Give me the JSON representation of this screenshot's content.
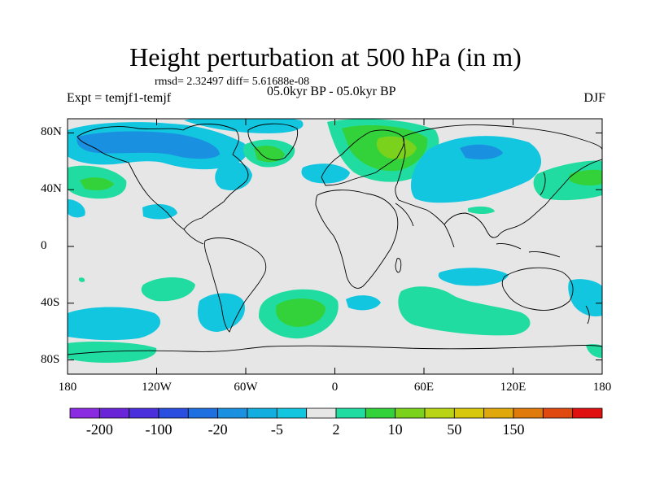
{
  "title": "Height perturbation at 500 hPa (in m)",
  "stats": "rmsd= 2.32497 diff= 5.61688e-08",
  "left_label": "Expt = temjf1-temjf",
  "center_label": "05.0kyr BP - 05.0kyr BP",
  "right_label": "DJF",
  "map": {
    "lon_range": [
      -180,
      180
    ],
    "lat_range": [
      -90,
      90
    ],
    "y_ticks": [
      {
        "lat": 80,
        "label": "80N"
      },
      {
        "lat": 40,
        "label": "40N"
      },
      {
        "lat": 0,
        "label": "0"
      },
      {
        "lat": -40,
        "label": "40S"
      },
      {
        "lat": -80,
        "label": "80S"
      }
    ],
    "x_ticks": [
      {
        "lon": -180,
        "label": "180"
      },
      {
        "lon": -120,
        "label": "120W"
      },
      {
        "lon": -60,
        "label": "60W"
      },
      {
        "lon": 0,
        "label": "0"
      },
      {
        "lon": 60,
        "label": "60E"
      },
      {
        "lon": 120,
        "label": "120E"
      },
      {
        "lon": 180,
        "label": "180"
      }
    ]
  },
  "colorbar": {
    "colors": [
      "#8a2be2",
      "#6a24d8",
      "#4a30dc",
      "#2a4ee0",
      "#1e6fe0",
      "#1a90e0",
      "#12aee0",
      "#12c6e0",
      "#e6e6e6",
      "#20dca0",
      "#34d23a",
      "#7ad21c",
      "#b8d414",
      "#d8c80c",
      "#e0a80a",
      "#e07a0a",
      "#e04a10",
      "#e01010"
    ],
    "labels": [
      "-200",
      "-100",
      "-20",
      "-5",
      "2",
      "10",
      "50",
      "150"
    ],
    "label_positions": [
      1,
      3,
      5,
      7,
      9,
      11,
      13,
      15
    ]
  }
}
